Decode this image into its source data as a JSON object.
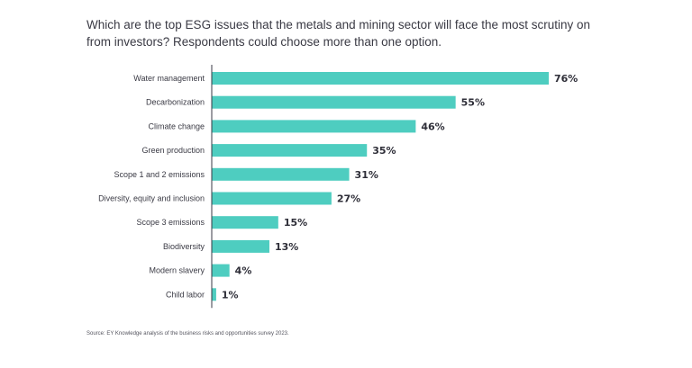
{
  "chart_data": {
    "type": "bar",
    "orientation": "horizontal",
    "title": "Which are the top ESG issues that the metals and mining sector will face the most scrutiny on from investors? Respondents could choose more than one option.",
    "categories": [
      "Water management",
      "Decarbonization",
      "Climate change",
      "Green production",
      "Scope 1 and 2 emissions",
      "Diversity, equity and inclusion",
      "Scope 3 emissions",
      "Biodiversity",
      "Modern slavery",
      "Child labor"
    ],
    "values": [
      76,
      55,
      46,
      35,
      31,
      27,
      15,
      13,
      4,
      1
    ],
    "value_labels": [
      "76%",
      "55%",
      "46%",
      "35%",
      "31%",
      "27%",
      "15%",
      "13%",
      "4%",
      "1%"
    ],
    "unit": "%",
    "xlim": [
      0,
      76
    ],
    "grid": false,
    "bar_color": "#4ecdc0",
    "axis_color": "#3a3a44",
    "source": "Source: EY Knowledge analysis of the business risks and opportunities survey 2023."
  }
}
